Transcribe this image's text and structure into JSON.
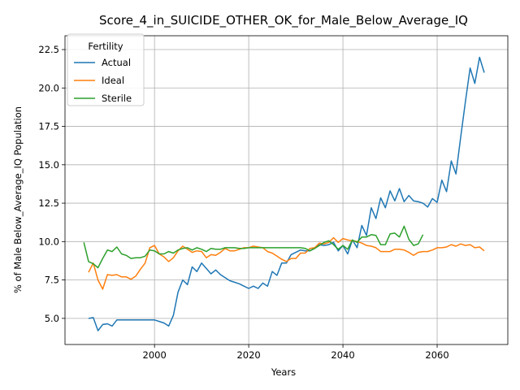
{
  "chart_data": {
    "type": "line",
    "title": "Score_4_in_SUICIDE_OTHER_OK_for_Male_Below_Average_IQ",
    "xlabel": "Years",
    "ylabel": "% of Male Below_Average_IQ Population",
    "xlim": [
      1981,
      2075
    ],
    "ylim": [
      3.3,
      23.4
    ],
    "xticks": [
      2000,
      2020,
      2040,
      2060
    ],
    "yticks": [
      5.0,
      7.5,
      10.0,
      12.5,
      15.0,
      17.5,
      20.0,
      22.5
    ],
    "ytick_labels": [
      "5.0",
      "7.5",
      "10.0",
      "12.5",
      "15.0",
      "17.5",
      "20.0",
      "22.5"
    ],
    "grid": true,
    "legend": {
      "title": "Fertility",
      "position": "top-left"
    },
    "series": [
      {
        "name": "Actual",
        "color": "#1f77b4",
        "x": [
          1986,
          1987,
          1988,
          1989,
          1990,
          1991,
          1992,
          1993,
          1994,
          1995,
          1996,
          1997,
          1998,
          1999,
          2000,
          2001,
          2002,
          2003,
          2004,
          2005,
          2006,
          2007,
          2008,
          2009,
          2010,
          2011,
          2012,
          2013,
          2014,
          2015,
          2016,
          2017,
          2018,
          2019,
          2020,
          2021,
          2022,
          2023,
          2024,
          2025,
          2026,
          2027,
          2028,
          2029,
          2030,
          2031,
          2032,
          2033,
          2034,
          2035,
          2036,
          2037,
          2038,
          2039,
          2040,
          2041,
          2042,
          2043,
          2044,
          2045,
          2046,
          2047,
          2048,
          2049,
          2050,
          2051,
          2052,
          2053,
          2054,
          2055,
          2056,
          2057,
          2058,
          2059,
          2060,
          2061,
          2062,
          2063,
          2064,
          2065,
          2066,
          2067,
          2068,
          2069,
          2070
        ],
        "y": [
          5.0,
          5.05,
          4.2,
          4.6,
          4.65,
          4.5,
          4.9,
          4.9,
          4.9,
          4.9,
          4.9,
          4.9,
          4.9,
          4.9,
          4.9,
          4.8,
          4.7,
          4.5,
          5.2,
          6.7,
          7.5,
          7.2,
          8.35,
          8.05,
          8.6,
          8.25,
          7.9,
          8.15,
          7.85,
          7.65,
          7.45,
          7.35,
          7.25,
          7.1,
          6.95,
          7.1,
          6.95,
          7.3,
          7.1,
          8.05,
          7.8,
          8.6,
          8.6,
          9.15,
          9.3,
          9.45,
          9.4,
          9.4,
          9.6,
          9.8,
          9.75,
          9.8,
          9.95,
          9.4,
          9.75,
          9.2,
          10.1,
          9.6,
          11.05,
          10.4,
          12.2,
          11.5,
          12.85,
          12.2,
          13.3,
          12.65,
          13.45,
          12.6,
          13.0,
          12.65,
          12.6,
          12.5,
          12.25,
          12.8,
          12.55,
          14.0,
          13.25,
          15.25,
          14.4,
          16.8,
          19.1,
          21.3,
          20.3,
          22.0,
          21.0
        ]
      },
      {
        "name": "Ideal",
        "color": "#ff7f0e",
        "x": [
          1986,
          1987,
          1988,
          1989,
          1990,
          1991,
          1992,
          1993,
          1994,
          1995,
          1996,
          1997,
          1998,
          1999,
          2000,
          2001,
          2002,
          2003,
          2004,
          2005,
          2006,
          2007,
          2008,
          2009,
          2010,
          2011,
          2012,
          2013,
          2014,
          2015,
          2016,
          2017,
          2018,
          2019,
          2020,
          2021,
          2022,
          2023,
          2024,
          2025,
          2026,
          2027,
          2028,
          2029,
          2030,
          2031,
          2032,
          2033,
          2034,
          2035,
          2036,
          2037,
          2038,
          2039,
          2040,
          2041,
          2042,
          2043,
          2044,
          2045,
          2046,
          2047,
          2048,
          2049,
          2050,
          2051,
          2052,
          2053,
          2054,
          2055,
          2056,
          2057,
          2058,
          2059,
          2060,
          2061,
          2062,
          2063,
          2064,
          2065,
          2066,
          2067,
          2068,
          2069,
          2070
        ],
        "y": [
          8.0,
          8.6,
          7.5,
          6.9,
          7.85,
          7.8,
          7.85,
          7.7,
          7.7,
          7.55,
          7.75,
          8.2,
          8.6,
          9.6,
          9.75,
          9.2,
          9.0,
          8.7,
          8.95,
          9.4,
          9.7,
          9.5,
          9.3,
          9.4,
          9.35,
          8.95,
          9.15,
          9.1,
          9.3,
          9.55,
          9.4,
          9.4,
          9.5,
          9.6,
          9.6,
          9.7,
          9.65,
          9.6,
          9.35,
          9.25,
          9.05,
          8.85,
          8.7,
          8.9,
          8.9,
          9.25,
          9.25,
          9.55,
          9.6,
          9.9,
          9.85,
          9.95,
          10.25,
          9.95,
          10.2,
          10.1,
          10.05,
          10.0,
          9.9,
          9.75,
          9.7,
          9.6,
          9.35,
          9.35,
          9.35,
          9.5,
          9.5,
          9.45,
          9.3,
          9.1,
          9.3,
          9.35,
          9.35,
          9.45,
          9.6,
          9.6,
          9.65,
          9.8,
          9.7,
          9.85,
          9.75,
          9.8,
          9.6,
          9.65,
          9.4
        ]
      },
      {
        "name": "Sterile",
        "color": "#2ca02c",
        "x": [
          1985,
          1986,
          1987,
          1988,
          1989,
          1990,
          1991,
          1992,
          1993,
          1994,
          1995,
          1996,
          1997,
          1998,
          1999,
          2000,
          2001,
          2002,
          2003,
          2004,
          2005,
          2006,
          2007,
          2008,
          2009,
          2010,
          2011,
          2012,
          2013,
          2014,
          2015,
          2016,
          2017,
          2018,
          2019,
          2020,
          2021,
          2022,
          2023,
          2024,
          2025,
          2026,
          2027,
          2028,
          2029,
          2030,
          2031,
          2032,
          2033,
          2034,
          2035,
          2036,
          2037,
          2038,
          2039,
          2040,
          2041,
          2042,
          2043,
          2044,
          2045,
          2046,
          2047,
          2048,
          2049,
          2050,
          2051,
          2052,
          2053,
          2054,
          2055,
          2056,
          2057
        ],
        "y": [
          9.95,
          8.7,
          8.55,
          8.3,
          8.9,
          9.45,
          9.35,
          9.65,
          9.2,
          9.1,
          8.9,
          8.95,
          8.95,
          9.05,
          9.45,
          9.4,
          9.2,
          9.2,
          9.35,
          9.25,
          9.45,
          9.55,
          9.6,
          9.45,
          9.6,
          9.5,
          9.35,
          9.55,
          9.5,
          9.5,
          9.6,
          9.6,
          9.6,
          9.55,
          9.55,
          9.6,
          9.6,
          9.6,
          9.6,
          9.6,
          9.6,
          9.6,
          9.6,
          9.6,
          9.6,
          9.6,
          9.6,
          9.55,
          9.4,
          9.55,
          9.75,
          9.95,
          10.05,
          9.8,
          9.5,
          9.75,
          9.5,
          10.1,
          9.95,
          10.3,
          10.3,
          10.45,
          10.4,
          9.8,
          9.8,
          10.5,
          10.55,
          10.3,
          11.0,
          10.15,
          9.75,
          9.85,
          10.45
        ]
      }
    ]
  }
}
